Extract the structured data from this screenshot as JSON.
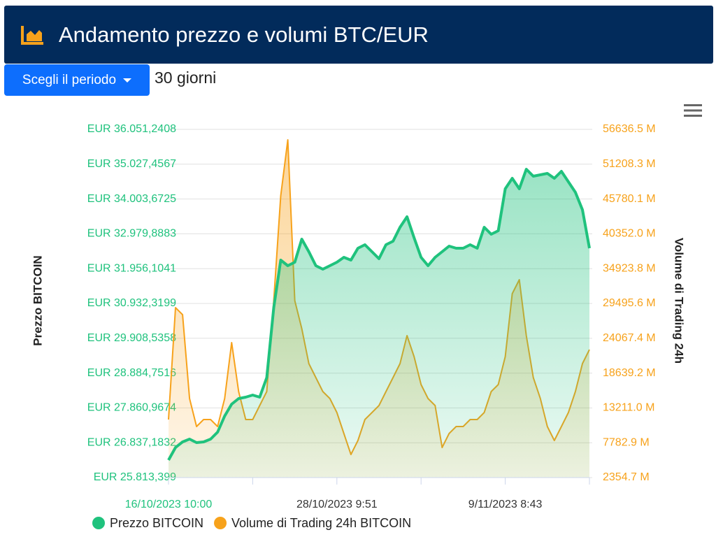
{
  "header": {
    "title": "Andamento prezzo e volumi BTC/EUR"
  },
  "controls": {
    "button": "Scegli il periodo",
    "period": "30 giorni"
  },
  "chart_data": {
    "type": "line",
    "ylabel": "Prezzo BITCOIN",
    "y2label": "Volume di Trading 24h",
    "grid": true,
    "legend": "bottom",
    "categories": [
      "16/10/2023 10:00",
      null,
      null,
      null,
      null,
      null,
      null,
      null,
      null,
      null,
      null,
      null,
      null,
      null,
      null,
      null,
      null,
      null,
      null,
      null,
      null,
      null,
      null,
      null,
      "28/10/2023 9:51",
      null,
      null,
      null,
      null,
      null,
      null,
      null,
      null,
      null,
      null,
      null,
      null,
      null,
      null,
      null,
      null,
      null,
      null,
      null,
      null,
      null,
      null,
      null,
      "9/11/2023 8:43",
      null,
      null,
      null,
      null,
      null,
      null,
      null,
      null,
      null,
      null,
      null,
      null
    ],
    "ylim": [
      25813.399,
      36051.2408
    ],
    "yticks": [
      {
        "value": 25813.399,
        "label": "EUR 25.813,399"
      },
      {
        "value": 26837.1832,
        "label": "EUR 26.837,1832"
      },
      {
        "value": 27860.9674,
        "label": "EUR 27.860,9674"
      },
      {
        "value": 28884.7516,
        "label": "EUR 28.884,7516"
      },
      {
        "value": 29908.5358,
        "label": "EUR 29.908,5358"
      },
      {
        "value": 30932.3199,
        "label": "EUR 30.932,3199"
      },
      {
        "value": 31956.1041,
        "label": "EUR 31.956,1041"
      },
      {
        "value": 32979.8883,
        "label": "EUR 32.979,8883"
      },
      {
        "value": 34003.6725,
        "label": "EUR 34.003,6725"
      },
      {
        "value": 35027.4567,
        "label": "EUR 35.027,4567"
      },
      {
        "value": 36051.2408,
        "label": "EUR 36.051,2408"
      }
    ],
    "y2lim": [
      2354.7,
      56636.5
    ],
    "y2ticks": [
      {
        "value": 2354.7,
        "label": "2354.7 M"
      },
      {
        "value": 7782.9,
        "label": "7782.9 M"
      },
      {
        "value": 13211,
        "label": "13211.0 M"
      },
      {
        "value": 18639.2,
        "label": "18639.2 M"
      },
      {
        "value": 24067.4,
        "label": "24067.4 M"
      },
      {
        "value": 29495.6,
        "label": "29495.6 M"
      },
      {
        "value": 34923.8,
        "label": "34923.8 M"
      },
      {
        "value": 40352,
        "label": "40352.0 M"
      },
      {
        "value": 45780.1,
        "label": "45780.1 M"
      },
      {
        "value": 51208.3,
        "label": "51208.3 M"
      },
      {
        "value": 56636.5,
        "label": "56636.5 M"
      }
    ],
    "series": [
      {
        "name": "Prezzo BITCOIN",
        "color": "#1fc27d",
        "values": [
          26327,
          26697,
          26862,
          26944,
          26841,
          26862,
          26944,
          27150,
          27622,
          27972,
          28137,
          28178,
          28239,
          28178,
          28753,
          30809,
          32207,
          32043,
          32145,
          32823,
          32454,
          32043,
          31940,
          32043,
          32145,
          32289,
          32207,
          32556,
          32659,
          32454,
          32248,
          32659,
          32762,
          33173,
          33481,
          32864,
          32289,
          32043,
          32289,
          32454,
          32618,
          32556,
          32556,
          32659,
          32556,
          33173,
          32967,
          33070,
          34303,
          34612,
          34303,
          34879,
          34674,
          34715,
          34756,
          34612,
          34817,
          34509,
          34201,
          33687,
          32556
        ]
      },
      {
        "name": "Volume di Trading 24h BITCOIN",
        "color": "#f7a21b",
        "axis": "y2",
        "values": [
          11402,
          28842,
          27752,
          14672,
          10312,
          11402,
          11402,
          10312,
          14672,
          23392,
          15762,
          11402,
          11402,
          13582,
          15762,
          29932,
          46282,
          55002,
          29932,
          25572,
          20122,
          17942,
          15762,
          14672,
          12492,
          9222,
          5952,
          8132,
          11402,
          12492,
          13582,
          15762,
          17942,
          20122,
          24482,
          21212,
          16852,
          14672,
          13582,
          7042,
          9222,
          10312,
          10312,
          11402,
          11402,
          12492,
          15762,
          16852,
          21212,
          31022,
          33202,
          24482,
          17942,
          14672,
          10312,
          8132,
          10312,
          12492,
          15762,
          20122,
          22302
        ]
      }
    ]
  }
}
